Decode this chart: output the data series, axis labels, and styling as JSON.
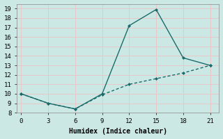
{
  "xlabel": "Humidex (Indice chaleur)",
  "ylabel": "",
  "background_color": "#cce8e4",
  "grid_color": "#e8c8c8",
  "line_color": "#1a6b6b",
  "line1_x": [
    0,
    3,
    6,
    9,
    12,
    15,
    18,
    21
  ],
  "line1_y": [
    10,
    9,
    8.4,
    10,
    17.2,
    18.9,
    13.8,
    13
  ],
  "line2_x": [
    0,
    3,
    6,
    9,
    12,
    15,
    18,
    21
  ],
  "line2_y": [
    10,
    9,
    8.4,
    9.9,
    11.0,
    11.6,
    12.2,
    13
  ],
  "xlim": [
    -0.5,
    22
  ],
  "ylim": [
    8,
    19.5
  ],
  "xticks": [
    0,
    3,
    6,
    9,
    12,
    15,
    18,
    21
  ],
  "yticks": [
    8,
    9,
    10,
    11,
    12,
    13,
    14,
    15,
    16,
    17,
    18,
    19
  ],
  "marker": "D",
  "marker_size": 2.5,
  "linewidth": 1.0,
  "tick_fontsize": 6.5,
  "xlabel_fontsize": 7
}
